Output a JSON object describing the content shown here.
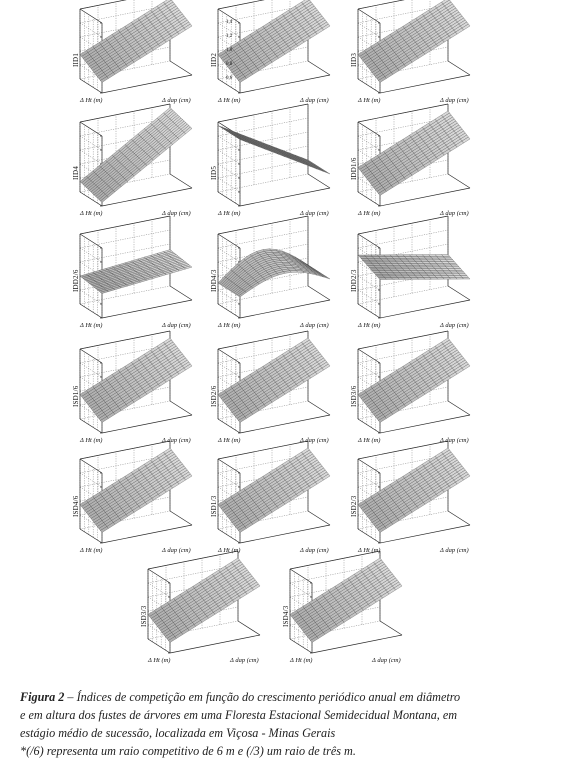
{
  "figure": {
    "panels": [
      {
        "id": "IID1",
        "ylabel": "IID1",
        "xlabel_ht": "Δ Ht (m)",
        "xlabel_dap": "Δ dap (cm)",
        "z_ticks": [
          "",
          "",
          "",
          "",
          "",
          ""
        ]
      },
      {
        "id": "IID2",
        "ylabel": "IID2",
        "xlabel_ht": "Δ Ht (m)",
        "xlabel_dap": "Δ dap (cm)",
        "z_ticks": [
          "1,4",
          "1,2",
          "1,0",
          "0,8",
          "0,6",
          ""
        ]
      },
      {
        "id": "IID3",
        "ylabel": "IID3",
        "xlabel_ht": "Δ Ht (m)",
        "xlabel_dap": "Δ dap (cm)",
        "z_ticks": [
          "",
          "",
          "",
          "",
          "",
          ""
        ]
      },
      {
        "id": "IID4",
        "ylabel": "IID4",
        "xlabel_ht": "Δ Ht (m)",
        "xlabel_dap": "Δ dap (cm)",
        "z_ticks": [
          "",
          "",
          "",
          "",
          "",
          ""
        ]
      },
      {
        "id": "IID5",
        "ylabel": "IID5",
        "xlabel_ht": "Δ Ht (m)",
        "xlabel_dap": "Δ dap (cm)",
        "z_ticks": [
          "",
          "",
          "",
          "",
          "",
          ""
        ]
      },
      {
        "id": "IDD1/6",
        "ylabel": "IDD1/6",
        "xlabel_ht": "Δ Ht (m)",
        "xlabel_dap": "Δ dap (cm)",
        "z_ticks": [
          "",
          "",
          "",
          "",
          "",
          ""
        ]
      },
      {
        "id": "IDD2/6",
        "ylabel": "IDD2/6",
        "xlabel_ht": "Δ Ht (m)",
        "xlabel_dap": "Δ dap (cm)",
        "z_ticks": [
          "",
          "",
          "",
          "",
          "",
          ""
        ]
      },
      {
        "id": "IDD4/3",
        "ylabel": "IDD4/3",
        "xlabel_ht": "Δ Ht (m)",
        "xlabel_dap": "Δ dap (cm)",
        "z_ticks": [
          "",
          "",
          "",
          "",
          "",
          ""
        ]
      },
      {
        "id": "IDD2/3",
        "ylabel": "IDD2/3",
        "xlabel_ht": "Δ Ht (m)",
        "xlabel_dap": "Δ dap (cm)",
        "z_ticks": [
          "",
          "",
          "",
          "",
          "",
          ""
        ]
      },
      {
        "id": "ISD1/6",
        "ylabel": "ISD1/6",
        "xlabel_ht": "Δ Ht (m)",
        "xlabel_dap": "Δ dap (cm)",
        "z_ticks": [
          "",
          "",
          "",
          "",
          "",
          ""
        ]
      },
      {
        "id": "ISD2/6",
        "ylabel": "ISD2/6",
        "xlabel_ht": "Δ Ht (m)",
        "xlabel_dap": "Δ dap (cm)",
        "z_ticks": [
          "",
          "",
          "",
          "",
          "",
          ""
        ]
      },
      {
        "id": "ISD3/6",
        "ylabel": "ISD3/6",
        "xlabel_ht": "Δ Ht (m)",
        "xlabel_dap": "Δ dap (cm)",
        "z_ticks": [
          "",
          "",
          "",
          "",
          "",
          ""
        ]
      },
      {
        "id": "ISD4/6",
        "ylabel": "ISD4/6",
        "xlabel_ht": "Δ Ht (m)",
        "xlabel_dap": "Δ dap (cm)",
        "z_ticks": [
          "",
          "",
          "",
          "",
          "",
          ""
        ]
      },
      {
        "id": "ISD1/3",
        "ylabel": "ISD1/3",
        "xlabel_ht": "Δ Ht (m)",
        "xlabel_dap": "Δ dap (cm)",
        "z_ticks": [
          "",
          "",
          "",
          "",
          "",
          ""
        ]
      },
      {
        "id": "ISD2/3",
        "ylabel": "ISD2/3",
        "xlabel_ht": "Δ Ht (m)",
        "xlabel_dap": "Δ dap (cm)",
        "z_ticks": [
          "",
          "",
          "",
          "",
          "",
          ""
        ]
      },
      {
        "id": "ISD3/3",
        "ylabel": "ISD3/3",
        "xlabel_ht": "Δ Ht (m)",
        "xlabel_dap": "Δ dap (cm)",
        "z_ticks": [
          "",
          "",
          "",
          "",
          "",
          ""
        ]
      },
      {
        "id": "ISD4/3",
        "ylabel": "ISD4/3",
        "xlabel_ht": "Δ Ht (m)",
        "xlabel_dap": "Δ dap (cm)",
        "z_ticks": [
          "",
          "",
          "",
          "",
          "",
          ""
        ]
      }
    ],
    "surface_shapes": [
      "rise",
      "rise",
      "rise",
      "rise-steep",
      "fall",
      "rise",
      "flat",
      "dome",
      "tilt",
      "rise",
      "rise",
      "rise",
      "rise",
      "rise",
      "rise",
      "rise",
      "rise"
    ],
    "colors": {
      "ink": "#2a2a2a",
      "grid": "#555555",
      "mesh": "#444444",
      "surface": "#bdbdbd"
    }
  },
  "caption": {
    "label": "Figura 2",
    "dash": " – ",
    "line1": "Índices de competição em função do crescimento periódico anual em diâmetro",
    "line2": "e em altura dos fustes de árvores em uma Floresta Estacional Semidecidual Montana, em",
    "line3": "estágio médio de sucessão, localizada em Viçosa - Minas Gerais",
    "line4": "*(/6) representa um raio competitivo de 6 m e (/3) um raio de três m."
  }
}
